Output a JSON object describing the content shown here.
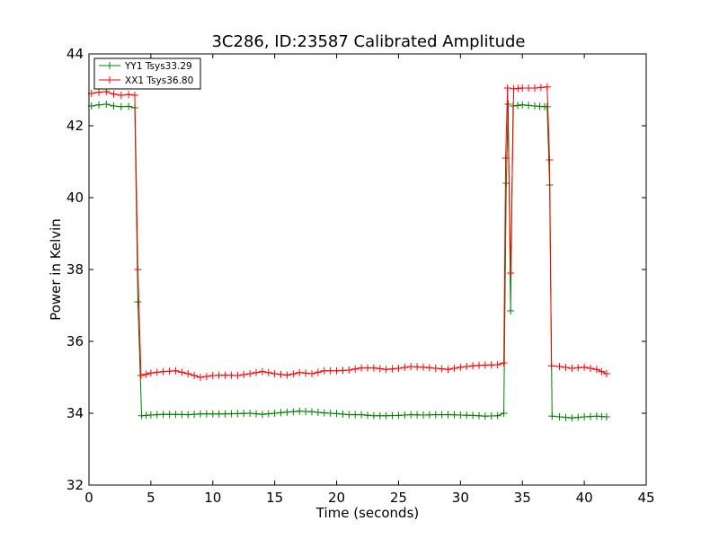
{
  "chart_data": {
    "type": "line",
    "title": "3C286, ID:23587 Calibrated Amplitude",
    "xlabel": "Time (seconds)",
    "ylabel": "Power in Kelvin",
    "xlim": [
      0,
      45
    ],
    "ylim": [
      32,
      44
    ],
    "xticks": [
      "0",
      "5",
      "10",
      "15",
      "20",
      "25",
      "30",
      "35",
      "40",
      "45"
    ],
    "yticks": [
      "32",
      "34",
      "36",
      "38",
      "40",
      "42",
      "44"
    ],
    "grid": false,
    "legend_position": "top-left",
    "marker": "plus",
    "series": [
      {
        "name": "YY1 Tsys33.29",
        "color": "#008000",
        "points": [
          [
            0.2,
            42.55
          ],
          [
            0.8,
            42.58
          ],
          [
            1.4,
            42.6
          ],
          [
            2.0,
            42.55
          ],
          [
            2.6,
            42.53
          ],
          [
            3.2,
            42.54
          ],
          [
            3.7,
            42.5
          ],
          [
            3.95,
            37.1
          ],
          [
            4.25,
            33.93
          ],
          [
            5.0,
            33.95
          ],
          [
            6.0,
            33.97
          ],
          [
            7.0,
            33.97
          ],
          [
            8.0,
            33.96
          ],
          [
            9.0,
            33.98
          ],
          [
            10.0,
            33.98
          ],
          [
            11.0,
            33.98
          ],
          [
            12.0,
            33.99
          ],
          [
            13.0,
            34.0
          ],
          [
            14.0,
            33.97
          ],
          [
            15.0,
            34.0
          ],
          [
            16.0,
            34.03
          ],
          [
            17.0,
            34.06
          ],
          [
            18.0,
            34.04
          ],
          [
            19.0,
            34.01
          ],
          [
            20.0,
            33.99
          ],
          [
            21.0,
            33.96
          ],
          [
            22.0,
            33.96
          ],
          [
            23.0,
            33.93
          ],
          [
            24.0,
            33.93
          ],
          [
            25.0,
            33.94
          ],
          [
            26.0,
            33.96
          ],
          [
            27.0,
            33.95
          ],
          [
            28.0,
            33.96
          ],
          [
            29.0,
            33.96
          ],
          [
            30.0,
            33.95
          ],
          [
            31.0,
            33.94
          ],
          [
            32.0,
            33.92
          ],
          [
            33.0,
            33.93
          ],
          [
            33.5,
            34.0
          ],
          [
            33.7,
            40.4
          ],
          [
            33.85,
            42.6
          ],
          [
            34.05,
            36.85
          ],
          [
            34.25,
            42.55
          ],
          [
            35.0,
            42.58
          ],
          [
            36.0,
            42.55
          ],
          [
            36.8,
            42.53
          ],
          [
            37.0,
            42.53
          ],
          [
            37.2,
            40.35
          ],
          [
            37.4,
            33.92
          ],
          [
            38.0,
            33.9
          ],
          [
            39.0,
            33.87
          ],
          [
            40.0,
            33.9
          ],
          [
            41.0,
            33.92
          ],
          [
            41.8,
            33.9
          ]
        ]
      },
      {
        "name": "XX1 Tsys36.80",
        "color": "#ff0000",
        "points": [
          [
            0.2,
            42.9
          ],
          [
            0.8,
            42.93
          ],
          [
            1.4,
            42.95
          ],
          [
            2.0,
            42.88
          ],
          [
            2.6,
            42.85
          ],
          [
            3.2,
            42.87
          ],
          [
            3.7,
            42.85
          ],
          [
            3.95,
            38.0
          ],
          [
            4.2,
            35.05
          ],
          [
            5.0,
            35.12
          ],
          [
            6.0,
            35.16
          ],
          [
            7.0,
            35.18
          ],
          [
            8.0,
            35.1
          ],
          [
            9.0,
            35.0
          ],
          [
            10.0,
            35.05
          ],
          [
            11.0,
            35.06
          ],
          [
            12.0,
            35.05
          ],
          [
            13.0,
            35.1
          ],
          [
            14.0,
            35.16
          ],
          [
            15.0,
            35.1
          ],
          [
            16.0,
            35.06
          ],
          [
            17.0,
            35.13
          ],
          [
            18.0,
            35.1
          ],
          [
            19.0,
            35.18
          ],
          [
            20.0,
            35.18
          ],
          [
            21.0,
            35.2
          ],
          [
            22.0,
            35.26
          ],
          [
            23.0,
            35.26
          ],
          [
            24.0,
            35.22
          ],
          [
            25.0,
            35.25
          ],
          [
            26.0,
            35.3
          ],
          [
            27.0,
            35.28
          ],
          [
            28.0,
            35.25
          ],
          [
            29.0,
            35.22
          ],
          [
            30.0,
            35.28
          ],
          [
            31.0,
            35.32
          ],
          [
            32.0,
            35.34
          ],
          [
            33.0,
            35.35
          ],
          [
            33.5,
            35.4
          ],
          [
            33.65,
            41.1
          ],
          [
            33.8,
            43.05
          ],
          [
            34.05,
            37.9
          ],
          [
            34.3,
            43.03
          ],
          [
            35.0,
            43.05
          ],
          [
            36.0,
            43.05
          ],
          [
            37.0,
            43.08
          ],
          [
            37.2,
            41.05
          ],
          [
            37.35,
            35.32
          ],
          [
            38.0,
            35.3
          ],
          [
            39.0,
            35.25
          ],
          [
            40.0,
            35.28
          ],
          [
            41.0,
            35.22
          ],
          [
            41.8,
            35.1
          ]
        ]
      }
    ]
  }
}
